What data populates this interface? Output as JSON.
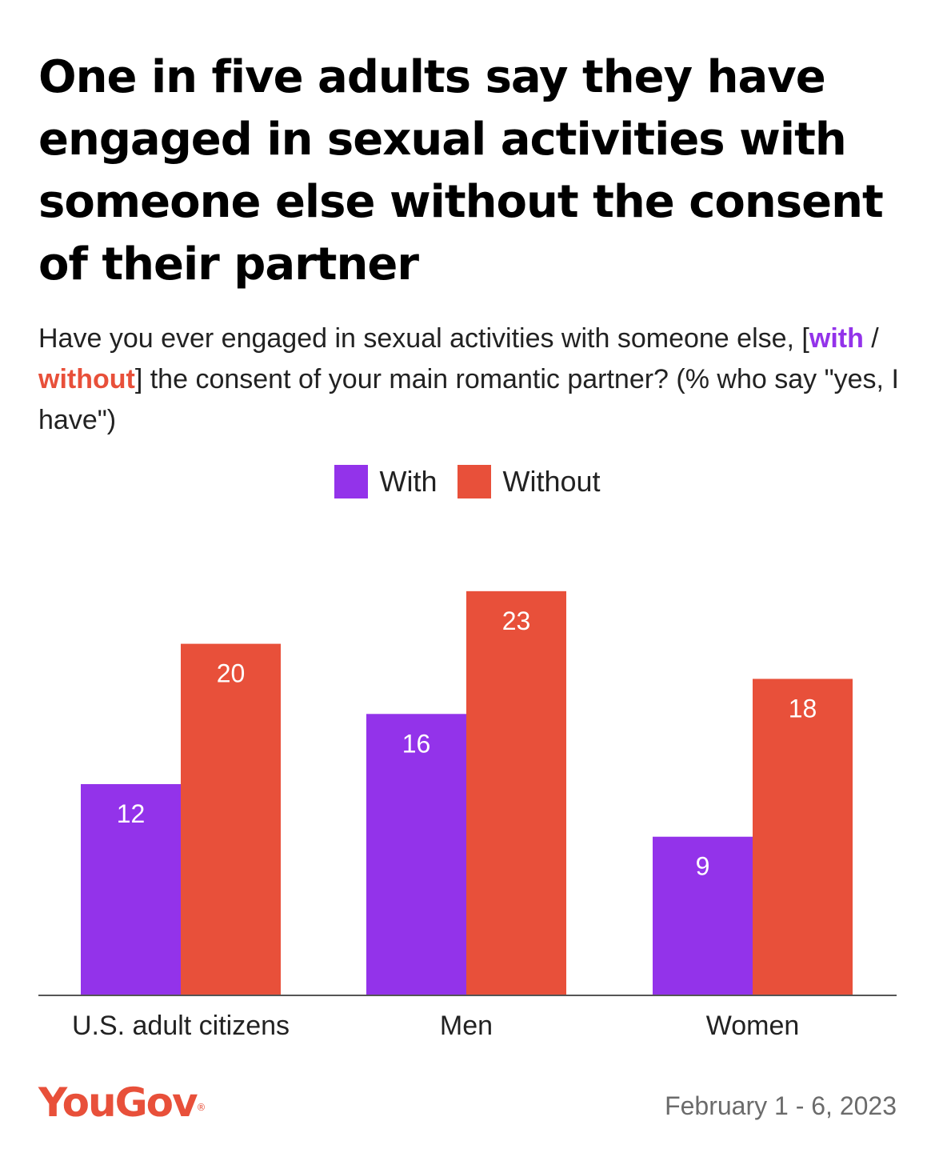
{
  "title": "One in five adults say they have engaged in sexual activities with someone else without the consent of their partner",
  "subtitle": {
    "line_start": "Have you ever engaged in sexual activities with someone else, [",
    "with_word": "with",
    "separator": " / ",
    "without_word": "without",
    "line_end": "] the consent of your main romantic partner? (% who say \"yes, I have\")"
  },
  "colors": {
    "with": "#9333ea",
    "without": "#e8503a",
    "axis": "#555555",
    "logo": "#e8503a"
  },
  "chart_data": {
    "type": "bar",
    "title": "One in five adults say they have engaged in sexual activities with someone else without the consent of their partner",
    "xlabel": "",
    "ylabel": "",
    "categories": [
      "U.S. adult citizens",
      "Men",
      "Women"
    ],
    "series": [
      {
        "name": "With",
        "values": [
          12,
          16,
          9
        ]
      },
      {
        "name": "Without",
        "values": [
          20,
          23,
          18
        ]
      }
    ],
    "ylim": [
      0,
      25
    ],
    "grid": false,
    "legend": "top-center"
  },
  "footer": {
    "brand": "YouGov",
    "brand_mark": "®",
    "date": "February 1 - 6, 2023"
  }
}
